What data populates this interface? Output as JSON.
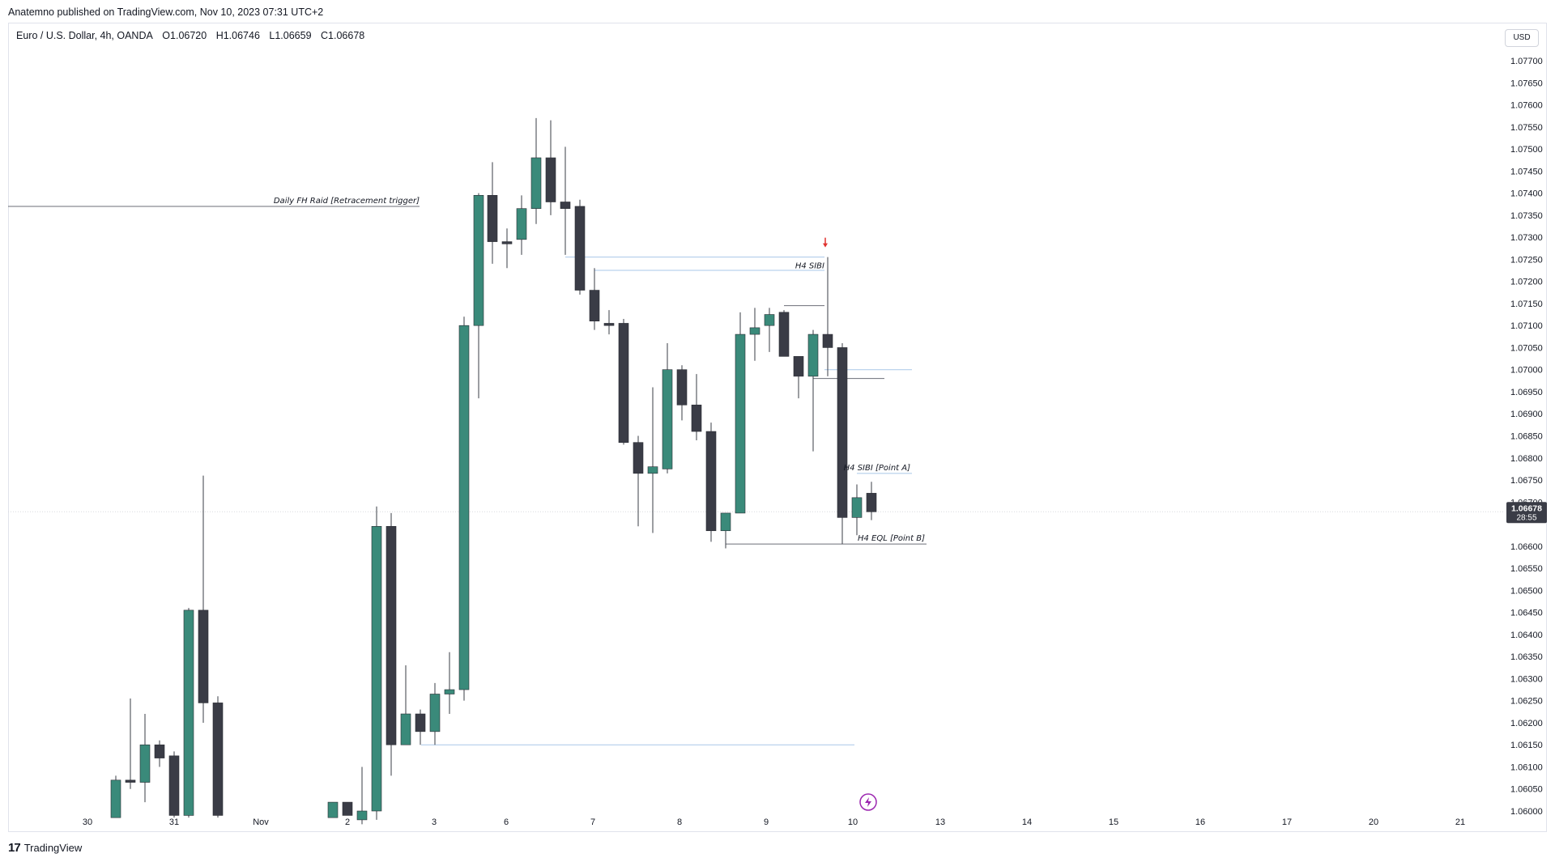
{
  "header": {
    "publish_info": "Anatemno published on TradingView.com, Nov 10, 2023 07:31 UTC+2"
  },
  "legend": {
    "symbol": "Euro / U.S. Dollar, 4h, OANDA",
    "open": "O1.06720",
    "high": "H1.06746",
    "low": "L1.06659",
    "close": "C1.06678"
  },
  "currency_button": "USD",
  "footer": {
    "brand": "TradingView"
  },
  "colors": {
    "bull": "#3a8a7a",
    "bear": "#3a3c46",
    "wick": "#3a3c46",
    "price_tag": "#3a3c46",
    "blue_line": "#a8c7e8",
    "gray_line": "#6b6e77",
    "marker": "#e0312e",
    "lightning": "#9c27b0"
  },
  "chart_data": {
    "type": "candlestick",
    "symbol": "EURUSD",
    "timeframe": "4h",
    "ylim": [
      1.0598,
      1.0779
    ],
    "y_ticks": [
      "1.07700",
      "1.07650",
      "1.07600",
      "1.07550",
      "1.07500",
      "1.07450",
      "1.07400",
      "1.07350",
      "1.07300",
      "1.07250",
      "1.07200",
      "1.07150",
      "1.07100",
      "1.07050",
      "1.07000",
      "1.06950",
      "1.06900",
      "1.06850",
      "1.06800",
      "1.06750",
      "1.06700",
      "1.06600",
      "1.06550",
      "1.06500",
      "1.06450",
      "1.06400",
      "1.06350",
      "1.06300",
      "1.06250",
      "1.06200",
      "1.06150",
      "1.06100",
      "1.06050",
      "1.06000"
    ],
    "x_ticks": [
      "30",
      "31",
      "Nov",
      "2",
      "3",
      "6",
      "7",
      "8",
      "9",
      "10",
      "13",
      "14",
      "15",
      "16",
      "17",
      "20",
      "21"
    ],
    "last_price": {
      "value": "1.06678",
      "countdown": "28:55"
    },
    "candles": [
      {
        "t": "Oct30 16:00",
        "o": 1.05985,
        "h": 1.0608,
        "l": 1.05985,
        "c": 1.0607
      },
      {
        "t": "Oct30 20:00",
        "o": 1.0607,
        "h": 1.06255,
        "l": 1.0605,
        "c": 1.06065
      },
      {
        "t": "Oct31 00:00",
        "o": 1.06065,
        "h": 1.0622,
        "l": 1.0602,
        "c": 1.0615
      },
      {
        "t": "Oct31 04:00",
        "o": 1.0615,
        "h": 1.0616,
        "l": 1.061,
        "c": 1.0612
      },
      {
        "t": "Oct31 08:00",
        "o": 1.06125,
        "h": 1.06135,
        "l": 1.05985,
        "c": 1.0599
      },
      {
        "t": "Oct31 12:00",
        "o": 1.0599,
        "h": 1.0646,
        "l": 1.05985,
        "c": 1.06455
      },
      {
        "t": "Oct31 16:00",
        "o": 1.06455,
        "h": 1.0676,
        "l": 1.062,
        "c": 1.06245
      },
      {
        "t": "Oct31 20:00",
        "o": 1.06245,
        "h": 1.0626,
        "l": 1.05985,
        "c": 1.0599
      },
      {
        "t": "Nov02 00:00",
        "o": 1.05985,
        "h": 1.0602,
        "l": 1.05985,
        "c": 1.0602
      },
      {
        "t": "Nov02 04:00",
        "o": 1.0602,
        "h": 1.0602,
        "l": 1.0599,
        "c": 1.0599
      },
      {
        "t": "Nov02 08:00",
        "o": 1.0598,
        "h": 1.061,
        "l": 1.0597,
        "c": 1.06
      },
      {
        "t": "Nov02 12:00",
        "o": 1.06,
        "h": 1.0669,
        "l": 1.0598,
        "c": 1.06645
      },
      {
        "t": "Nov02 16:00",
        "o": 1.06645,
        "h": 1.06675,
        "l": 1.0608,
        "c": 1.0615
      },
      {
        "t": "Nov02 20:00",
        "o": 1.0615,
        "h": 1.0633,
        "l": 1.0615,
        "c": 1.0622
      },
      {
        "t": "Nov03 00:00",
        "o": 1.0622,
        "h": 1.0623,
        "l": 1.0615,
        "c": 1.0618
      },
      {
        "t": "Nov03 04:00",
        "o": 1.0618,
        "h": 1.0629,
        "l": 1.0615,
        "c": 1.06265
      },
      {
        "t": "Nov03 08:00",
        "o": 1.06265,
        "h": 1.0636,
        "l": 1.0622,
        "c": 1.06275
      },
      {
        "t": "Nov03 12:00",
        "o": 1.06275,
        "h": 1.0712,
        "l": 1.0625,
        "c": 1.071
      },
      {
        "t": "Nov03 16:00",
        "o": 1.071,
        "h": 1.074,
        "l": 1.06935,
        "c": 1.07395
      },
      {
        "t": "Nov06 00:00",
        "o": 1.07395,
        "h": 1.0747,
        "l": 1.0724,
        "c": 1.0729
      },
      {
        "t": "Nov06 04:00",
        "o": 1.0729,
        "h": 1.0732,
        "l": 1.0723,
        "c": 1.07285
      },
      {
        "t": "Nov06 08:00",
        "o": 1.07295,
        "h": 1.07395,
        "l": 1.0726,
        "c": 1.07365
      },
      {
        "t": "Nov06 12:00",
        "o": 1.07365,
        "h": 1.0757,
        "l": 1.0733,
        "c": 1.0748
      },
      {
        "t": "Nov06 16:00",
        "o": 1.0748,
        "h": 1.07565,
        "l": 1.0735,
        "c": 1.0738
      },
      {
        "t": "Nov06 20:00",
        "o": 1.0738,
        "h": 1.07505,
        "l": 1.0726,
        "c": 1.07365
      },
      {
        "t": "Nov07 00:00",
        "o": 1.0737,
        "h": 1.07385,
        "l": 1.0717,
        "c": 1.0718
      },
      {
        "t": "Nov07 04:00",
        "o": 1.0718,
        "h": 1.0723,
        "l": 1.0709,
        "c": 1.0711
      },
      {
        "t": "Nov07 08:00",
        "o": 1.07105,
        "h": 1.07135,
        "l": 1.0708,
        "c": 1.071
      },
      {
        "t": "Nov07 12:00",
        "o": 1.07105,
        "h": 1.07115,
        "l": 1.0683,
        "c": 1.06835
      },
      {
        "t": "Nov07 16:00",
        "o": 1.06835,
        "h": 1.0685,
        "l": 1.06645,
        "c": 1.06765
      },
      {
        "t": "Nov07 20:00",
        "o": 1.06765,
        "h": 1.0696,
        "l": 1.0663,
        "c": 1.0678
      },
      {
        "t": "Nov08 00:00",
        "o": 1.06775,
        "h": 1.0706,
        "l": 1.06765,
        "c": 1.07
      },
      {
        "t": "Nov08 04:00",
        "o": 1.07,
        "h": 1.0701,
        "l": 1.06885,
        "c": 1.0692
      },
      {
        "t": "Nov08 08:00",
        "o": 1.0692,
        "h": 1.0699,
        "l": 1.0684,
        "c": 1.0686
      },
      {
        "t": "Nov08 12:00",
        "o": 1.0686,
        "h": 1.0688,
        "l": 1.0661,
        "c": 1.06635
      },
      {
        "t": "Nov08 16:00",
        "o": 1.06635,
        "h": 1.06675,
        "l": 1.06595,
        "c": 1.06675
      },
      {
        "t": "Nov08 20:00",
        "o": 1.06675,
        "h": 1.0713,
        "l": 1.06675,
        "c": 1.0708
      },
      {
        "t": "Nov09 00:00",
        "o": 1.0708,
        "h": 1.0714,
        "l": 1.0702,
        "c": 1.07095
      },
      {
        "t": "Nov09 04:00",
        "o": 1.071,
        "h": 1.0714,
        "l": 1.0704,
        "c": 1.07125
      },
      {
        "t": "Nov09 08:00",
        "o": 1.0713,
        "h": 1.07135,
        "l": 1.0703,
        "c": 1.0703
      },
      {
        "t": "Nov09 12:00",
        "o": 1.0703,
        "h": 1.0703,
        "l": 1.06935,
        "c": 1.06985
      },
      {
        "t": "Nov09 16:00",
        "o": 1.06985,
        "h": 1.0709,
        "l": 1.06815,
        "c": 1.0708
      },
      {
        "t": "Nov09 20:00",
        "o": 1.0708,
        "h": 1.07255,
        "l": 1.06985,
        "c": 1.0705
      },
      {
        "t": "Nov10 00:00",
        "o": 1.0705,
        "h": 1.0706,
        "l": 1.06605,
        "c": 1.06665
      },
      {
        "t": "Nov10 04:00",
        "o": 1.06665,
        "h": 1.0674,
        "l": 1.06625,
        "c": 1.0671
      },
      {
        "t": "Nov10 08:00",
        "o": 1.0672,
        "h": 1.06746,
        "l": 1.06659,
        "c": 1.06678
      }
    ],
    "annotations": [
      {
        "label": "Daily FH Raid [Retracement trigger]",
        "price": 1.0737
      },
      {
        "label": "H4 SIBI",
        "price": 1.07255
      },
      {
        "label": "H4 SIBI [Point A]",
        "price": 1.06765
      },
      {
        "label": "H4 EQL [Point B]",
        "price": 1.06605
      }
    ],
    "grid": false
  }
}
